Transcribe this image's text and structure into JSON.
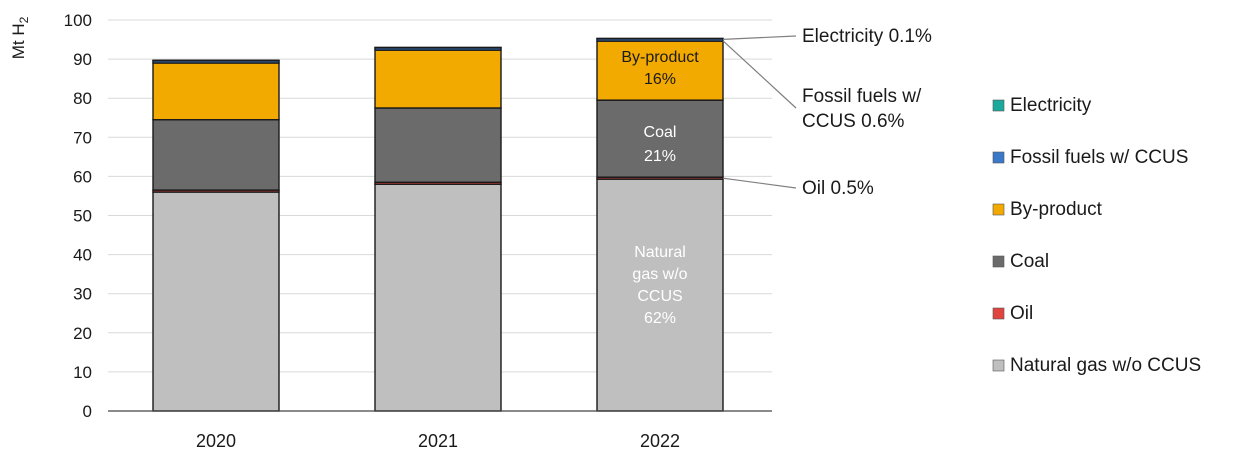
{
  "chart_data": {
    "type": "bar",
    "stacked": true,
    "categories": [
      "2020",
      "2021",
      "2022"
    ],
    "ylabel": "Mt H2",
    "ylim": [
      0,
      100
    ],
    "yticks": [
      "0",
      "10",
      "20",
      "30",
      "40",
      "50",
      "60",
      "70",
      "80",
      "90",
      "100"
    ],
    "grid": true,
    "legend_position": "right",
    "series": [
      {
        "name": "Natural gas w/o CCUS",
        "color": "#bfbfbf",
        "values": [
          56.0,
          58.0,
          59.3
        ]
      },
      {
        "name": "Oil",
        "color": "#e0443c",
        "values": [
          0.5,
          0.5,
          0.5
        ]
      },
      {
        "name": "Coal",
        "color": "#6b6b6b",
        "values": [
          18.0,
          19.0,
          19.7
        ]
      },
      {
        "name": "By-product",
        "color": "#f2a900",
        "values": [
          14.5,
          14.8,
          15.1
        ]
      },
      {
        "name": "Fossil fuels w/ CCUS",
        "color": "#3a78c9",
        "values": [
          0.6,
          0.6,
          0.6
        ]
      },
      {
        "name": "Electricity",
        "color": "#1aa99a",
        "values": [
          0.1,
          0.1,
          0.1
        ]
      }
    ],
    "legend_order": [
      "Electricity",
      "Fossil fuels w/ CCUS",
      "By-product",
      "Coal",
      "Oil",
      "Natural gas w/o CCUS"
    ],
    "bar_labels_2022": {
      "byproduct": [
        "By-product",
        "16%"
      ],
      "coal": [
        "Coal",
        "21%"
      ],
      "natgas": [
        "Natural",
        "gas w/o",
        "CCUS",
        "62%"
      ]
    },
    "annotations": {
      "electricity": "Electricity 0.1%",
      "fossil": [
        "Fossil fuels w/",
        "CCUS 0.6%"
      ],
      "oil": "Oil 0.5%"
    }
  }
}
